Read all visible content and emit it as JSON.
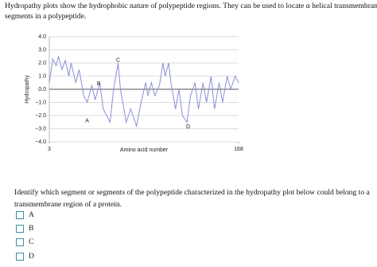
{
  "header": {
    "text_lines": [
      "Hydropathy plots show the hydrophobic nature of polypeptide regions. They can be used to locate α helical transmembrane",
      "segments in a polypeptide."
    ]
  },
  "chart_data": {
    "type": "line",
    "xlabel": "Amino acid number",
    "ylabel": "Hydropathy",
    "color": "#8a8fd6",
    "grid": true,
    "xlim": [
      3,
      168
    ],
    "xticks": [
      3,
      168
    ],
    "ylim": [
      -4,
      4
    ],
    "yticks": [
      {
        "value": 4,
        "label": "4.0"
      },
      {
        "value": 3,
        "label": "3.0"
      },
      {
        "value": 2,
        "label": "2.0"
      },
      {
        "value": 1,
        "label": "1.0"
      },
      {
        "value": 0,
        "label": "0.0"
      },
      {
        "value": -1,
        "label": "−1.0"
      },
      {
        "value": -2,
        "label": "−2.0"
      },
      {
        "value": -3,
        "label": "−3.0"
      },
      {
        "value": -4,
        "label": "−4.0"
      }
    ],
    "x": [
      3,
      6,
      9,
      11,
      14,
      17,
      20,
      22,
      26,
      29,
      33,
      36,
      40,
      43,
      47,
      50,
      56,
      59,
      63,
      65,
      70,
      74,
      79,
      83,
      87,
      89,
      92,
      95,
      99,
      102,
      104,
      107,
      109,
      113,
      116,
      119,
      123,
      126,
      130,
      133,
      137,
      140,
      144,
      147,
      151,
      154,
      158,
      161,
      165,
      168
    ],
    "values": [
      0.5,
      2.3,
      1.8,
      2.5,
      1.5,
      2.2,
      1.0,
      2.0,
      0.5,
      1.5,
      -0.5,
      -1.0,
      0.3,
      -0.8,
      0.5,
      -1.5,
      -2.5,
      0,
      2.0,
      0,
      -2.5,
      -1.5,
      -2.8,
      -1.0,
      0.5,
      -0.5,
      0.5,
      -0.5,
      0.3,
      2.0,
      1.0,
      2.0,
      0.5,
      -1.5,
      0,
      -2.0,
      -2.5,
      -0.5,
      0.5,
      -1.5,
      0.5,
      -1.0,
      1.0,
      -1.5,
      0.5,
      -1.0,
      1.0,
      0,
      1.0,
      0.5
    ],
    "annotations": [
      {
        "text": "A",
        "x": 36,
        "y": -2.4
      },
      {
        "text": "B",
        "x": 46,
        "y": 0.4
      },
      {
        "text": "C",
        "x": 63,
        "y": 2.2
      },
      {
        "text": "D",
        "x": 124,
        "y": -2.85
      }
    ]
  },
  "question": {
    "text_lines": [
      "Identify which segment or segments of the polypeptide characterized in the hydropathy plot below could belong to a",
      "transmembrane region of a protein."
    ]
  },
  "options": [
    "A",
    "B",
    "C",
    "D"
  ]
}
